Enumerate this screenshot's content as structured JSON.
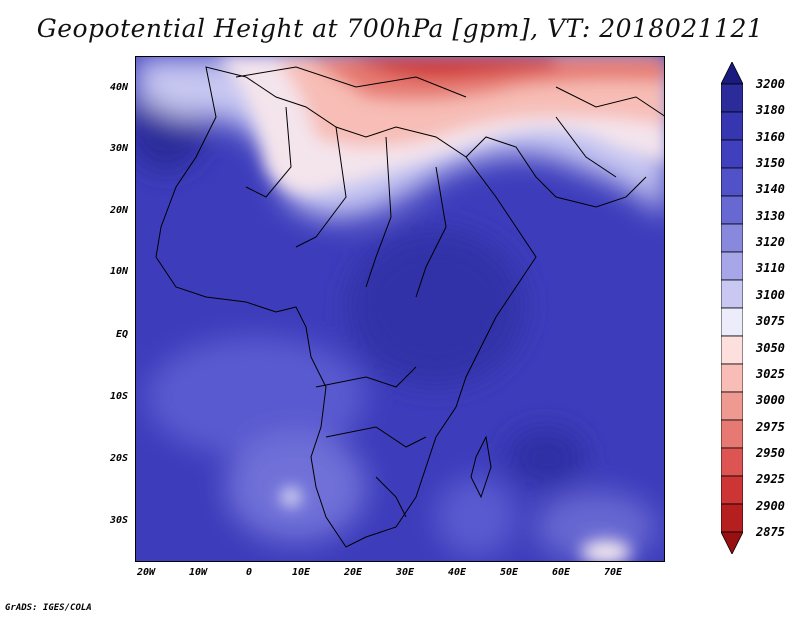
{
  "title": "Geopotential Height at 700hPa [gpm], VT: 2018021121",
  "footer": "GrADS: IGES/COLA",
  "map": {
    "lat_labels": [
      "40N",
      "30N",
      "20N",
      "10N",
      "EQ",
      "10S",
      "20S",
      "30S"
    ],
    "lon_labels": [
      "20W",
      "10W",
      "0",
      "10E",
      "20E",
      "30E",
      "40E",
      "50E",
      "60E",
      "70E"
    ]
  },
  "colorbar": {
    "levels": [
      "3200",
      "3180",
      "3160",
      "3150",
      "3140",
      "3130",
      "3120",
      "3110",
      "3100",
      "3075",
      "3050",
      "3025",
      "3000",
      "2975",
      "2950",
      "2925",
      "2900",
      "2875"
    ],
    "colors": [
      "#1a1a80",
      "#2b2b99",
      "#3636b0",
      "#4040bf",
      "#5252c8",
      "#6868d2",
      "#8888dd",
      "#a6a6e8",
      "#c8c8f2",
      "#ececfa",
      "#fde0dd",
      "#f7bdb6",
      "#ef9a91",
      "#e67a72",
      "#dc5552",
      "#cd3434",
      "#b51f1f",
      "#981010"
    ]
  }
}
